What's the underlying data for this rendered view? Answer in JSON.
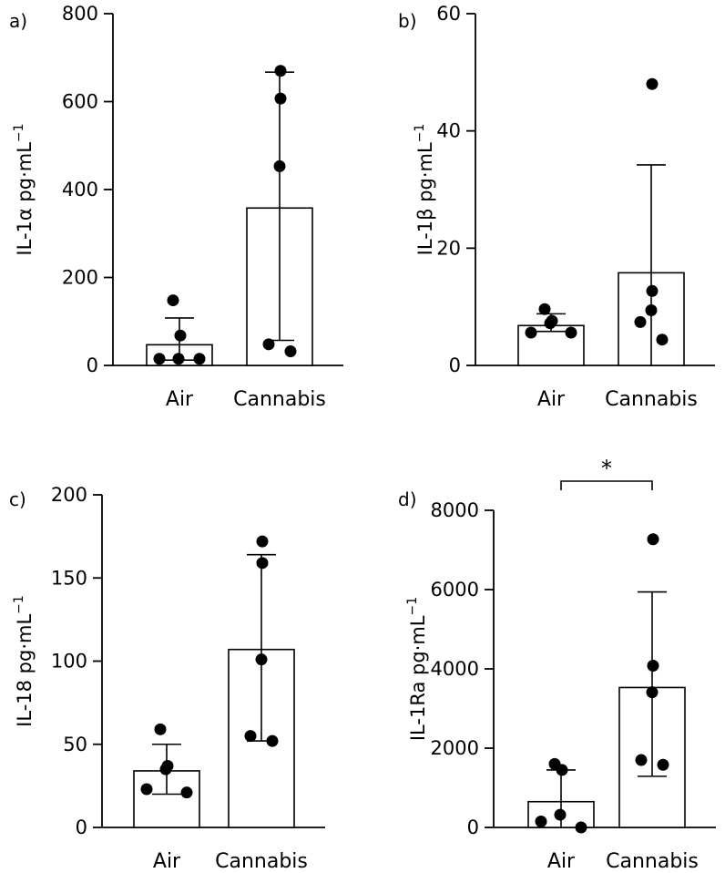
{
  "chart_data": [
    {
      "type": "bar",
      "panel_label": "a)",
      "ylabel": "IL-1α pg·mL",
      "ylabel_superscript": "−1",
      "categories": [
        "Air",
        "Cannabis"
      ],
      "values": [
        47,
        358
      ],
      "error_upper": [
        108,
        667
      ],
      "error_lower": [
        12,
        57
      ],
      "points": [
        [
          148,
          68,
          15,
          15,
          15
        ],
        [
          670,
          607,
          453,
          48,
          32
        ]
      ],
      "ylim": [
        0,
        800
      ],
      "yticks": [
        "0",
        "200",
        "400",
        "600",
        "800"
      ],
      "significance": null
    },
    {
      "type": "bar",
      "panel_label": "b)",
      "ylabel": "IL-1β pg·mL",
      "ylabel_superscript": "−1",
      "categories": [
        "Air",
        "Cannabis"
      ],
      "values": [
        6.8,
        15.8
      ],
      "error_upper": [
        8.8,
        34.2
      ],
      "error_lower": [
        5.8,
        0
      ],
      "points": [
        [
          9.6,
          7.6,
          7.2,
          5.6,
          5.6
        ],
        [
          48,
          12.7,
          9.4,
          7.4,
          4.4
        ]
      ],
      "ylim": [
        0,
        60
      ],
      "yticks": [
        "0",
        "20",
        "40",
        "60"
      ],
      "significance": null
    },
    {
      "type": "bar",
      "panel_label": "c)",
      "ylabel": "IL-18 pg·mL",
      "ylabel_superscript": "−1",
      "categories": [
        "Air",
        "Cannabis"
      ],
      "values": [
        34,
        107
      ],
      "error_upper": [
        50,
        164
      ],
      "error_lower": [
        20,
        52
      ],
      "points": [
        [
          59,
          37,
          35,
          23,
          21
        ],
        [
          172,
          159,
          101,
          55,
          52
        ]
      ],
      "ylim": [
        0,
        200
      ],
      "yticks": [
        "0",
        "50",
        "100",
        "150",
        "200"
      ],
      "significance": null
    },
    {
      "type": "bar",
      "panel_label": "d)",
      "ylabel": "IL-1Ra pg·mL",
      "ylabel_superscript": "−1",
      "categories": [
        "Air",
        "Cannabis"
      ],
      "values": [
        650,
        3530
      ],
      "error_upper": [
        1450,
        5940
      ],
      "error_lower": [
        0,
        1290
      ],
      "points": [
        [
          1600,
          1450,
          320,
          150,
          0
        ],
        [
          7270,
          4080,
          3410,
          1700,
          1580
        ]
      ],
      "ylim": [
        0,
        8000
      ],
      "yticks": [
        "0",
        "2000",
        "4000",
        "6000",
        "8000"
      ],
      "significance": "*"
    }
  ]
}
